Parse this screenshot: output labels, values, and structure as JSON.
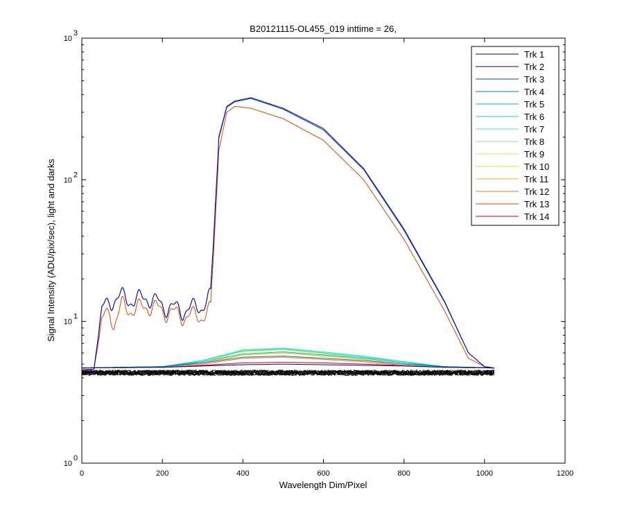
{
  "chart_data": {
    "type": "line",
    "title": "B20121115-OL455_019 inttime = 26,",
    "xlabel": "Wavelength Dim/Pixel",
    "ylabel": "Signal Intensity (ADU/pix/sec), light and darks",
    "xlim": [
      0,
      1200
    ],
    "ylim": [
      1,
      1000
    ],
    "yscale": "log",
    "x_ticks": [
      "0",
      "200",
      "400",
      "600",
      "800",
      "1000",
      "1200"
    ],
    "x_tick_values": [
      0,
      200,
      400,
      600,
      800,
      1000,
      1200
    ],
    "y_ticks": [
      {
        "value": 1,
        "base": "10",
        "exp": "0"
      },
      {
        "value": 10,
        "base": "10",
        "exp": "1"
      },
      {
        "value": 100,
        "base": "10",
        "exp": "2"
      },
      {
        "value": 1000,
        "base": "10",
        "exp": "3"
      }
    ],
    "grid": false,
    "legend_position": "top-right",
    "series": [
      {
        "name": "Trk 1",
        "color": "#0000ad",
        "x": [
          0,
          30,
          50,
          70,
          100,
          130,
          160,
          200,
          250,
          300,
          320,
          340,
          360,
          380,
          420,
          500,
          600,
          700,
          800,
          900,
          960,
          1000,
          1024
        ],
        "y": [
          4.5,
          4.6,
          12,
          14,
          15,
          14,
          15,
          13,
          12,
          13,
          15,
          200,
          330,
          360,
          380,
          320,
          230,
          120,
          45,
          14,
          6,
          4.8,
          4.7
        ]
      },
      {
        "name": "Trk 2",
        "color": "#00008b",
        "x": [
          0,
          200,
          300,
          400,
          500,
          600,
          700,
          800,
          900,
          1024
        ],
        "y": [
          4.7,
          4.75,
          4.85,
          4.95,
          5.0,
          4.95,
          4.9,
          4.85,
          4.75,
          4.7
        ]
      },
      {
        "name": "Trk 3",
        "color": "#0048a8",
        "x": [
          0,
          30,
          50,
          70,
          100,
          130,
          160,
          200,
          250,
          300,
          320,
          340,
          360,
          380,
          420,
          500,
          600,
          700,
          800,
          900,
          960,
          1000,
          1024
        ],
        "y": [
          4.5,
          4.6,
          12,
          14,
          15,
          14,
          15,
          13,
          12,
          13,
          15,
          195,
          325,
          355,
          375,
          315,
          225,
          118,
          44,
          13.8,
          6,
          4.8,
          4.7
        ]
      },
      {
        "name": "Trk 4",
        "color": "#007b9c",
        "x": [
          0,
          200,
          300,
          400,
          500,
          600,
          700,
          800,
          900,
          1024
        ],
        "y": [
          4.7,
          4.8,
          5.1,
          5.6,
          5.7,
          5.5,
          5.3,
          5.0,
          4.8,
          4.7
        ]
      },
      {
        "name": "Trk 5",
        "color": "#00b4c8",
        "x": [
          0,
          200,
          300,
          400,
          500,
          600,
          700,
          800,
          900,
          1024
        ],
        "y": [
          4.7,
          4.8,
          5.2,
          5.9,
          6.1,
          5.8,
          5.5,
          5.1,
          4.8,
          4.7
        ]
      },
      {
        "name": "Trk 6",
        "color": "#00d8d8",
        "x": [
          0,
          200,
          300,
          400,
          500,
          600,
          700,
          800,
          900,
          1024
        ],
        "y": [
          4.7,
          4.8,
          5.3,
          6.2,
          6.4,
          6.0,
          5.6,
          5.2,
          4.8,
          4.7
        ]
      },
      {
        "name": "Trk 7",
        "color": "#40e8d8",
        "x": [
          0,
          200,
          300,
          400,
          500,
          600,
          700,
          800,
          900,
          1024
        ],
        "y": [
          4.7,
          4.8,
          5.3,
          6.3,
          6.5,
          6.1,
          5.7,
          5.2,
          4.8,
          4.7
        ]
      },
      {
        "name": "Trk 8",
        "color": "#80e880",
        "x": [
          0,
          200,
          300,
          400,
          500,
          600,
          700,
          800,
          900,
          1024
        ],
        "y": [
          4.7,
          4.8,
          5.3,
          6.3,
          6.5,
          6.1,
          5.7,
          5.2,
          4.8,
          4.7
        ]
      },
      {
        "name": "Trk 9",
        "color": "#c8e850",
        "x": [
          0,
          200,
          300,
          400,
          500,
          600,
          700,
          800,
          900,
          1024
        ],
        "y": [
          4.7,
          4.8,
          5.3,
          6.2,
          6.4,
          6.0,
          5.6,
          5.2,
          4.8,
          4.7
        ]
      },
      {
        "name": "Trk 10",
        "color": "#e8e020",
        "x": [
          0,
          200,
          300,
          400,
          500,
          600,
          700,
          800,
          900,
          1024
        ],
        "y": [
          4.7,
          4.8,
          5.2,
          6.1,
          6.3,
          5.9,
          5.5,
          5.1,
          4.8,
          4.7
        ]
      },
      {
        "name": "Trk 11",
        "color": "#f0b000",
        "x": [
          0,
          200,
          300,
          400,
          500,
          600,
          700,
          800,
          900,
          1024
        ],
        "y": [
          4.7,
          4.8,
          5.1,
          5.8,
          6.0,
          5.7,
          5.4,
          5.0,
          4.8,
          4.7
        ]
      },
      {
        "name": "Trk 12",
        "color": "#f07020",
        "x": [
          0,
          200,
          300,
          400,
          500,
          600,
          700,
          800,
          900,
          1024
        ],
        "y": [
          4.7,
          4.8,
          5.0,
          5.5,
          5.6,
          5.4,
          5.2,
          4.9,
          4.75,
          4.7
        ]
      },
      {
        "name": "Trk 13",
        "color": "#e04000",
        "x": [
          0,
          30,
          50,
          70,
          80,
          100,
          130,
          160,
          200,
          250,
          300,
          320,
          340,
          360,
          380,
          420,
          500,
          600,
          700,
          800,
          900,
          960,
          1000,
          1024
        ],
        "y": [
          4.6,
          4.6,
          10,
          12,
          9.5,
          13,
          12,
          13,
          12,
          11,
          11,
          12,
          160,
          300,
          330,
          320,
          270,
          190,
          100,
          38,
          12,
          5.5,
          4.8,
          4.7
        ]
      },
      {
        "name": "Trk 14",
        "color": "#c80000",
        "x": [
          0,
          200,
          300,
          400,
          500,
          600,
          700,
          800,
          900,
          1024
        ],
        "y": [
          4.7,
          4.75,
          4.9,
          5.1,
          5.15,
          5.1,
          5.0,
          4.9,
          4.75,
          4.7
        ]
      }
    ],
    "dark_traces_level": 4.35,
    "dark_traces_color": "#000000"
  }
}
